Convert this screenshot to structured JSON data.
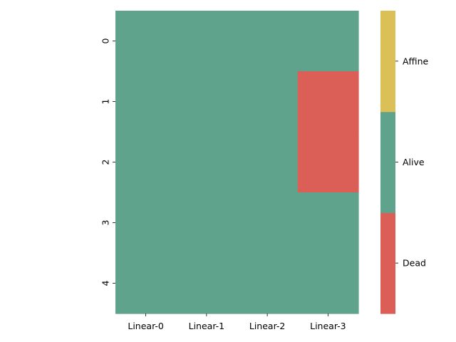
{
  "chart_data": {
    "type": "heatmap",
    "title": "",
    "xlabel": "",
    "ylabel": "",
    "x_categories": [
      "Linear-0",
      "Linear-1",
      "Linear-2",
      "Linear-3"
    ],
    "y_categories": [
      "0",
      "1",
      "2",
      "3",
      "4"
    ],
    "states": [
      "Dead",
      "Alive",
      "Affine"
    ],
    "state_colors": {
      "Dead": "#db5f57",
      "Alive": "#5fa38c",
      "Affine": "#dbc057"
    },
    "cells": [
      [
        "Alive",
        "Alive",
        "Alive",
        "Alive"
      ],
      [
        "Alive",
        "Alive",
        "Alive",
        "Dead"
      ],
      [
        "Alive",
        "Alive",
        "Alive",
        "Dead"
      ],
      [
        "Alive",
        "Alive",
        "Alive",
        "Alive"
      ],
      [
        "Alive",
        "Alive",
        "Alive",
        "Alive"
      ]
    ],
    "colorbar": {
      "position": "right",
      "labels": [
        "Dead",
        "Alive",
        "Affine"
      ]
    }
  }
}
